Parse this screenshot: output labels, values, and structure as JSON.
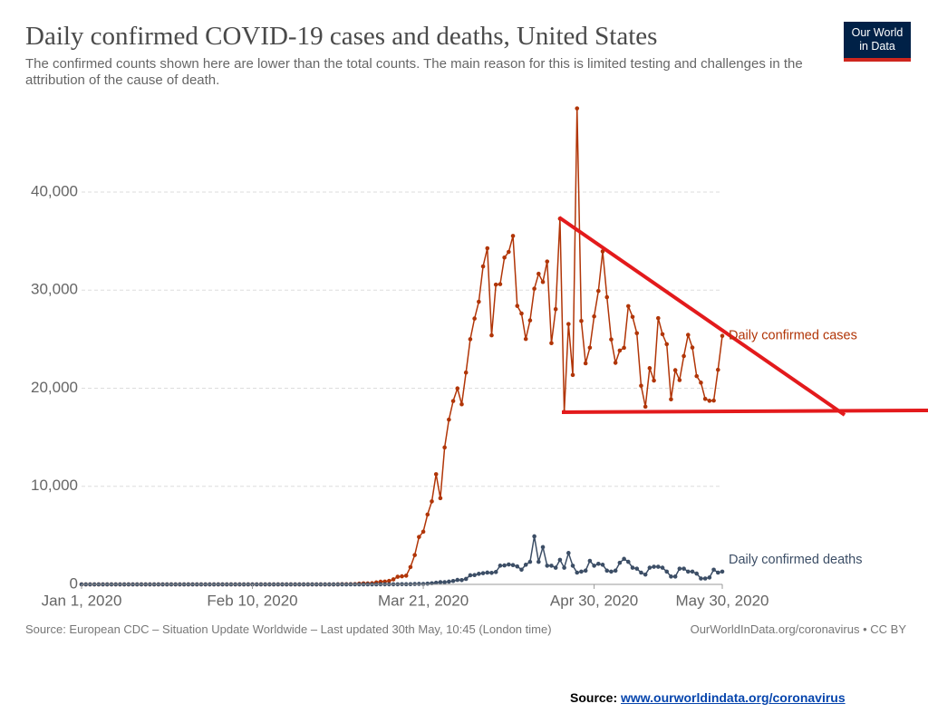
{
  "chart_data": {
    "type": "line",
    "title": "Daily confirmed COVID-19 cases and deaths, United States",
    "subtitle": "The confirmed counts shown here are lower than the total counts. The main reason for this is limited testing and challenges in the attribution of the cause of death.",
    "x": [
      "2020-01-01",
      "2020-01-02",
      "2020-01-03",
      "2020-01-04",
      "2020-01-05",
      "2020-01-06",
      "2020-01-07",
      "2020-01-08",
      "2020-01-09",
      "2020-01-10",
      "2020-01-11",
      "2020-01-12",
      "2020-01-13",
      "2020-01-14",
      "2020-01-15",
      "2020-01-16",
      "2020-01-17",
      "2020-01-18",
      "2020-01-19",
      "2020-01-20",
      "2020-01-21",
      "2020-01-22",
      "2020-01-23",
      "2020-01-24",
      "2020-01-25",
      "2020-01-26",
      "2020-01-27",
      "2020-01-28",
      "2020-01-29",
      "2020-01-30",
      "2020-01-31",
      "2020-02-01",
      "2020-02-02",
      "2020-02-03",
      "2020-02-04",
      "2020-02-05",
      "2020-02-06",
      "2020-02-07",
      "2020-02-08",
      "2020-02-09",
      "2020-02-10",
      "2020-02-11",
      "2020-02-12",
      "2020-02-13",
      "2020-02-14",
      "2020-02-15",
      "2020-02-16",
      "2020-02-17",
      "2020-02-18",
      "2020-02-19",
      "2020-02-20",
      "2020-02-21",
      "2020-02-22",
      "2020-02-23",
      "2020-02-24",
      "2020-02-25",
      "2020-02-26",
      "2020-02-27",
      "2020-02-28",
      "2020-02-29",
      "2020-03-01",
      "2020-03-02",
      "2020-03-03",
      "2020-03-04",
      "2020-03-05",
      "2020-03-06",
      "2020-03-07",
      "2020-03-08",
      "2020-03-09",
      "2020-03-10",
      "2020-03-11",
      "2020-03-12",
      "2020-03-13",
      "2020-03-14",
      "2020-03-15",
      "2020-03-16",
      "2020-03-17",
      "2020-03-18",
      "2020-03-19",
      "2020-03-20",
      "2020-03-21",
      "2020-03-22",
      "2020-03-23",
      "2020-03-24",
      "2020-03-25",
      "2020-03-26",
      "2020-03-27",
      "2020-03-28",
      "2020-03-29",
      "2020-03-30",
      "2020-03-31",
      "2020-04-01",
      "2020-04-02",
      "2020-04-03",
      "2020-04-04",
      "2020-04-05",
      "2020-04-06",
      "2020-04-07",
      "2020-04-08",
      "2020-04-09",
      "2020-04-10",
      "2020-04-11",
      "2020-04-12",
      "2020-04-13",
      "2020-04-14",
      "2020-04-15",
      "2020-04-16",
      "2020-04-17",
      "2020-04-18",
      "2020-04-19",
      "2020-04-20",
      "2020-04-21",
      "2020-04-22",
      "2020-04-23",
      "2020-04-24",
      "2020-04-25",
      "2020-04-26",
      "2020-04-27",
      "2020-04-28",
      "2020-04-29",
      "2020-04-30",
      "2020-05-01",
      "2020-05-02",
      "2020-05-03",
      "2020-05-04",
      "2020-05-05",
      "2020-05-06",
      "2020-05-07",
      "2020-05-08",
      "2020-05-09",
      "2020-05-10",
      "2020-05-11",
      "2020-05-12",
      "2020-05-13",
      "2020-05-14",
      "2020-05-15",
      "2020-05-16",
      "2020-05-17",
      "2020-05-18",
      "2020-05-19",
      "2020-05-20",
      "2020-05-21",
      "2020-05-22",
      "2020-05-23",
      "2020-05-24",
      "2020-05-25",
      "2020-05-26",
      "2020-05-27",
      "2020-05-28",
      "2020-05-29",
      "2020-05-30"
    ],
    "series": [
      {
        "name": "Daily confirmed cases",
        "color": "#b13507",
        "values": [
          0,
          0,
          0,
          0,
          0,
          0,
          0,
          0,
          0,
          0,
          0,
          0,
          0,
          0,
          0,
          0,
          0,
          0,
          0,
          0,
          0,
          0,
          0,
          0,
          0,
          0,
          0,
          0,
          0,
          0,
          0,
          0,
          0,
          0,
          0,
          0,
          0,
          0,
          0,
          0,
          0,
          0,
          0,
          0,
          0,
          0,
          0,
          0,
          0,
          0,
          0,
          0,
          0,
          0,
          0,
          0,
          0,
          0,
          0,
          0,
          3,
          20,
          14,
          22,
          34,
          74,
          105,
          95,
          121,
          200,
          271,
          287,
          351,
          511,
          777,
          823,
          887,
          1766,
          2988,
          4835,
          5374,
          7123,
          8459,
          11236,
          8789,
          13963,
          16797,
          18695,
          19979,
          18360,
          21595,
          24998,
          27103,
          28819,
          32425,
          34272,
          25398,
          30561,
          30613,
          33323,
          33901,
          35527,
          28391,
          27620,
          25023,
          26922,
          30148,
          31667,
          30833,
          32922,
          24601,
          28065,
          37289,
          17588,
          26543,
          21352,
          48529,
          26857,
          22541,
          24132,
          27326,
          29917,
          33955,
          29288,
          24972,
          22593,
          23841,
          24128,
          28369,
          27274,
          25612,
          20258,
          18117,
          22048,
          20782,
          27143,
          25508,
          24487,
          18873,
          21841,
          20832,
          23285,
          25434,
          24147,
          21236,
          20568,
          18910,
          18721,
          18741,
          21882,
          25337
        ]
      },
      {
        "name": "Daily confirmed deaths",
        "color": "#3c4e66",
        "values": [
          0,
          0,
          0,
          0,
          0,
          0,
          0,
          0,
          0,
          0,
          0,
          0,
          0,
          0,
          0,
          0,
          0,
          0,
          0,
          0,
          0,
          0,
          0,
          0,
          0,
          0,
          0,
          0,
          0,
          0,
          0,
          0,
          0,
          0,
          0,
          0,
          0,
          0,
          0,
          0,
          0,
          0,
          0,
          0,
          0,
          0,
          0,
          0,
          0,
          0,
          0,
          0,
          0,
          0,
          0,
          0,
          0,
          0,
          0,
          0,
          1,
          5,
          1,
          3,
          1,
          2,
          3,
          4,
          0,
          4,
          9,
          7,
          7,
          10,
          7,
          20,
          14,
          19,
          38,
          49,
          47,
          75,
          115,
          164,
          231,
          225,
          281,
          347,
          454,
          434,
          558,
          925,
          950,
          1076,
          1142,
          1206,
          1173,
          1260,
          1907,
          1934,
          2030,
          1965,
          1830,
          1500,
          2000,
          2300,
          4900,
          2300,
          3800,
          1900,
          1900,
          1700,
          2500,
          1700,
          3200,
          1900,
          1200,
          1300,
          1400,
          2400,
          1900,
          2100,
          2000,
          1400,
          1300,
          1400,
          2200,
          2600,
          2300,
          1700,
          1600,
          1200,
          1000,
          1700,
          1800,
          1800,
          1700,
          1300,
          800,
          800,
          1600,
          1600,
          1300,
          1300,
          1100,
          600,
          600,
          700,
          1500,
          1200,
          1300
        ]
      }
    ],
    "xlim": [
      "2020-01-01",
      "2020-05-30"
    ],
    "xticks": [
      {
        "value": "2020-01-01",
        "label": "Jan 1, 2020"
      },
      {
        "value": "2020-02-10",
        "label": "Feb 10, 2020"
      },
      {
        "value": "2020-03-21",
        "label": "Mar 21, 2020"
      },
      {
        "value": "2020-04-30",
        "label": "Apr 30, 2020"
      },
      {
        "value": "2020-05-30",
        "label": "May 30, 2020"
      }
    ],
    "ylim": [
      0,
      50000
    ],
    "yticks": [
      0,
      {
        "value": 10000,
        "label": "10,000"
      },
      {
        "value": 20000,
        "label": "20,000"
      },
      {
        "value": 30000,
        "label": "30,000"
      },
      {
        "value": 40000,
        "label": "40,000"
      }
    ],
    "grid": true
  },
  "logo": {
    "line1": "Our World",
    "line2": "in Data"
  },
  "footer": {
    "left": "Source: European CDC – Situation Update Worldwide – Last updated 30th May, 10:45 (London time)",
    "right": "OurWorldInData.org/coronavirus • CC BY"
  },
  "source": {
    "label": "Source:",
    "link": "www.ourworldindata.org/coronavirus"
  }
}
